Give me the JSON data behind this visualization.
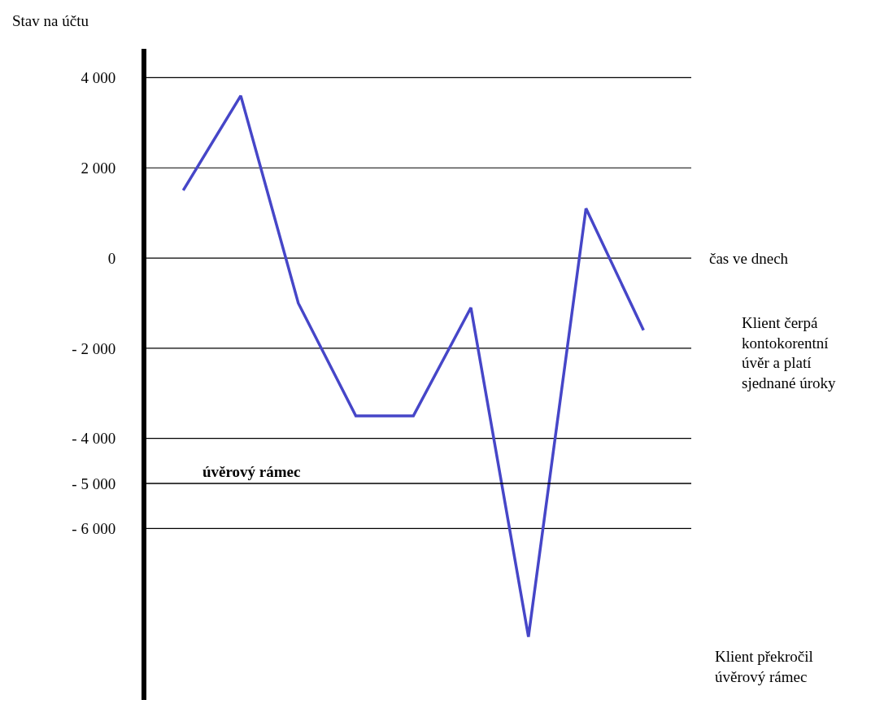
{
  "chart_data": {
    "type": "line",
    "ylabel": "Stav na účtu",
    "xlabel": "čas ve dnech",
    "categories": [
      null,
      null,
      null,
      null,
      null,
      null,
      null,
      null,
      null
    ],
    "series": [
      {
        "color": "#4646c8",
        "values": [
          1500,
          3600,
          -1000,
          -3500,
          -3500,
          -1100,
          -8400,
          1100,
          -1600
        ]
      }
    ],
    "ylim": [
      -9800,
      4640
    ],
    "yticks": [
      {
        "value": 4000,
        "label": "4 000"
      },
      {
        "value": 2000,
        "label": "2 000"
      },
      0,
      {
        "value": -2000,
        "label": "- 2 000"
      },
      {
        "value": -4000,
        "label": "- 4 000"
      },
      {
        "value": -6000,
        "label": "- 6 000"
      },
      {
        "value": -5000,
        "label": "- 5 000"
      }
    ],
    "grid": "y",
    "legend": false,
    "marker": "none",
    "line_style": "solid",
    "ref_lines": [
      {
        "axis": "y",
        "value": -5000,
        "label": "úvěrový rámec",
        "color": "#000000"
      }
    ],
    "annotations": [
      "Klient čerpá\nkontokorentní\núvěr a platí\nsjednané úroky",
      "Klient překročil\núvěrový rámec"
    ]
  }
}
